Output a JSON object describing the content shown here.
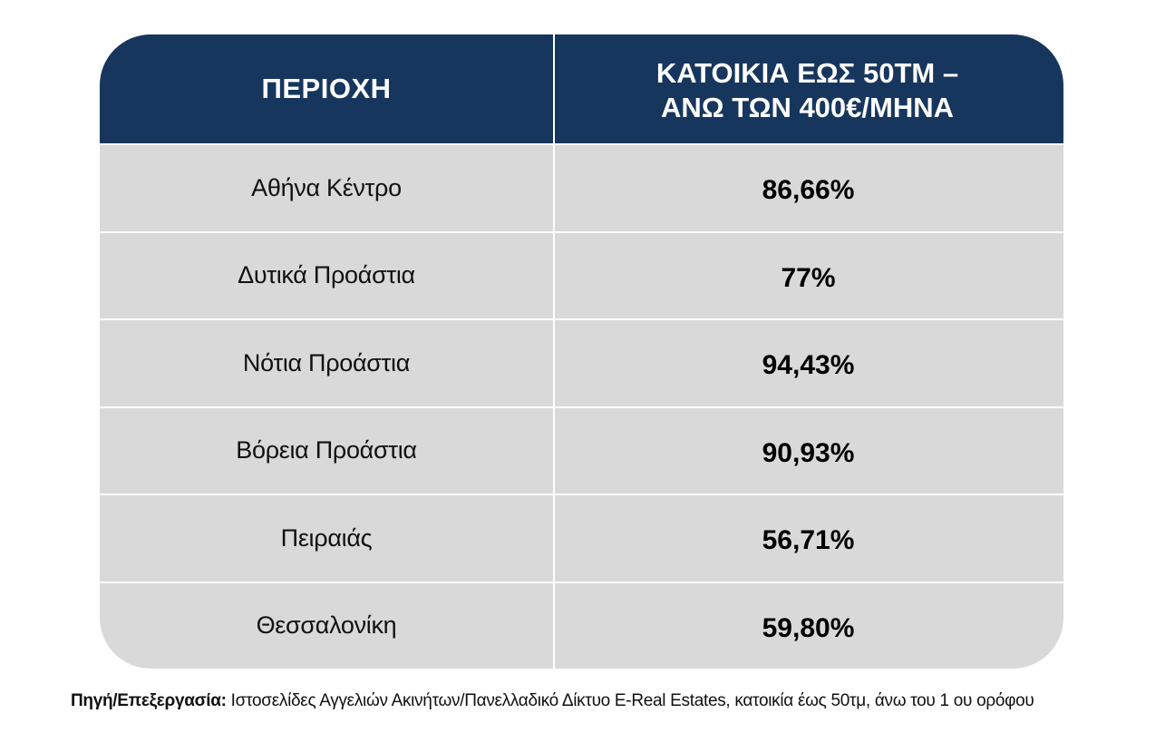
{
  "table": {
    "header": {
      "region_label": "ΠΕΡΙΟΧΗ",
      "value_label": "ΚΑΤΟΙΚΙΑ  ΕΩΣ 50ΤΜ –\nΑΝΩ ΤΩΝ 400€/ΜΗΝΑ"
    },
    "rows": [
      {
        "region": "Αθήνα Κέντρο",
        "value": "86,66%"
      },
      {
        "region": "Δυτικά Προάστια",
        "value": "77%"
      },
      {
        "region": "Νότια Προάστια",
        "value": "94,43%"
      },
      {
        "region": "Βόρεια Προάστια",
        "value": "90,93%"
      },
      {
        "region": "Πειραιάς",
        "value": "56,71%"
      },
      {
        "region": "Θεσσαλονίκη",
        "value": "59,80%"
      }
    ]
  },
  "colors": {
    "header_bg": "#17365d",
    "body_bg": "#d9d9d9",
    "grid_lines": "#ffffff"
  },
  "source": {
    "label": "Πηγή/Επεξεργασία:",
    "text": " Ιστοσελίδες Αγγελιών Ακινήτων/Πανελλαδικό Δίκτυο E-Real Estates, κατοικία έως 50τμ, άνω του 1 ου ορόφου"
  }
}
